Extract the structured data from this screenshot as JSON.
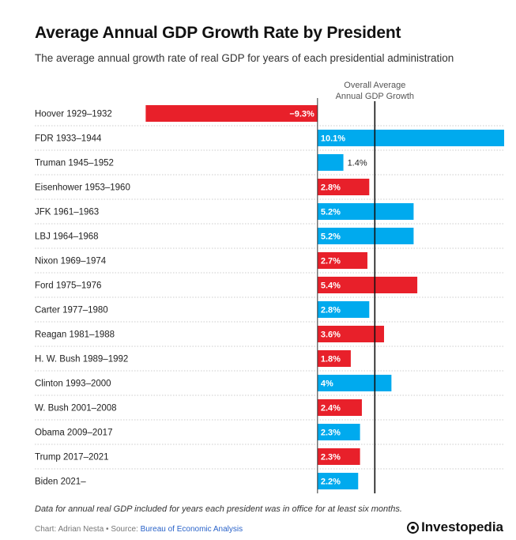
{
  "title": "Average Annual GDP Growth Rate by President",
  "subtitle": "The average annual growth rate of real GDP for years of each presidential administration",
  "reference_label": [
    "Overall Average",
    "Annual GDP Growth"
  ],
  "footnote": "Data for annual real GDP included for years each president was in office for at least six months.",
  "credit": {
    "prefix": "Chart: Adrian Nesta • Source: ",
    "source": "Bureau of Economic Analysis"
  },
  "brand": "Investopedia",
  "colors": {
    "red": "#e8202a",
    "blue": "#00aaee",
    "axis": "#333333",
    "grid": "#cccccc"
  },
  "chart_data": {
    "type": "bar",
    "orientation": "horizontal",
    "xlim": [
      -10,
      10.1
    ],
    "reference_value": 3.1,
    "reference_label": "Overall Average Annual GDP Growth",
    "categories": [
      "Hoover 1929–1932",
      "FDR 1933–1944",
      "Truman 1945–1952",
      "Eisenhower 1953–1960",
      "JFK 1961–1963",
      "LBJ 1964–1968",
      "Nixon 1969–1974",
      "Ford 1975–1976",
      "Carter 1977–1980",
      "Reagan 1981–1988",
      "H. W. Bush 1989–1992",
      "Clinton 1993–2000",
      "W. Bush 2001–2008",
      "Obama 2009–2017",
      "Trump 2017–2021",
      "Biden 2021–"
    ],
    "values": [
      -9.3,
      10.1,
      1.4,
      2.8,
      5.2,
      5.2,
      2.7,
      5.4,
      2.8,
      3.6,
      1.8,
      4,
      2.4,
      2.3,
      2.3,
      2.2
    ],
    "labels": [
      "−9.3%",
      "10.1%",
      "1.4%",
      "2.8%",
      "5.2%",
      "5.2%",
      "2.7%",
      "5.4%",
      "2.8%",
      "3.6%",
      "1.8%",
      "4%",
      "2.4%",
      "2.3%",
      "2.3%",
      "2.2%"
    ],
    "party": [
      "R",
      "D",
      "D",
      "R",
      "D",
      "D",
      "R",
      "R",
      "D",
      "R",
      "R",
      "D",
      "R",
      "D",
      "R",
      "D"
    ]
  }
}
